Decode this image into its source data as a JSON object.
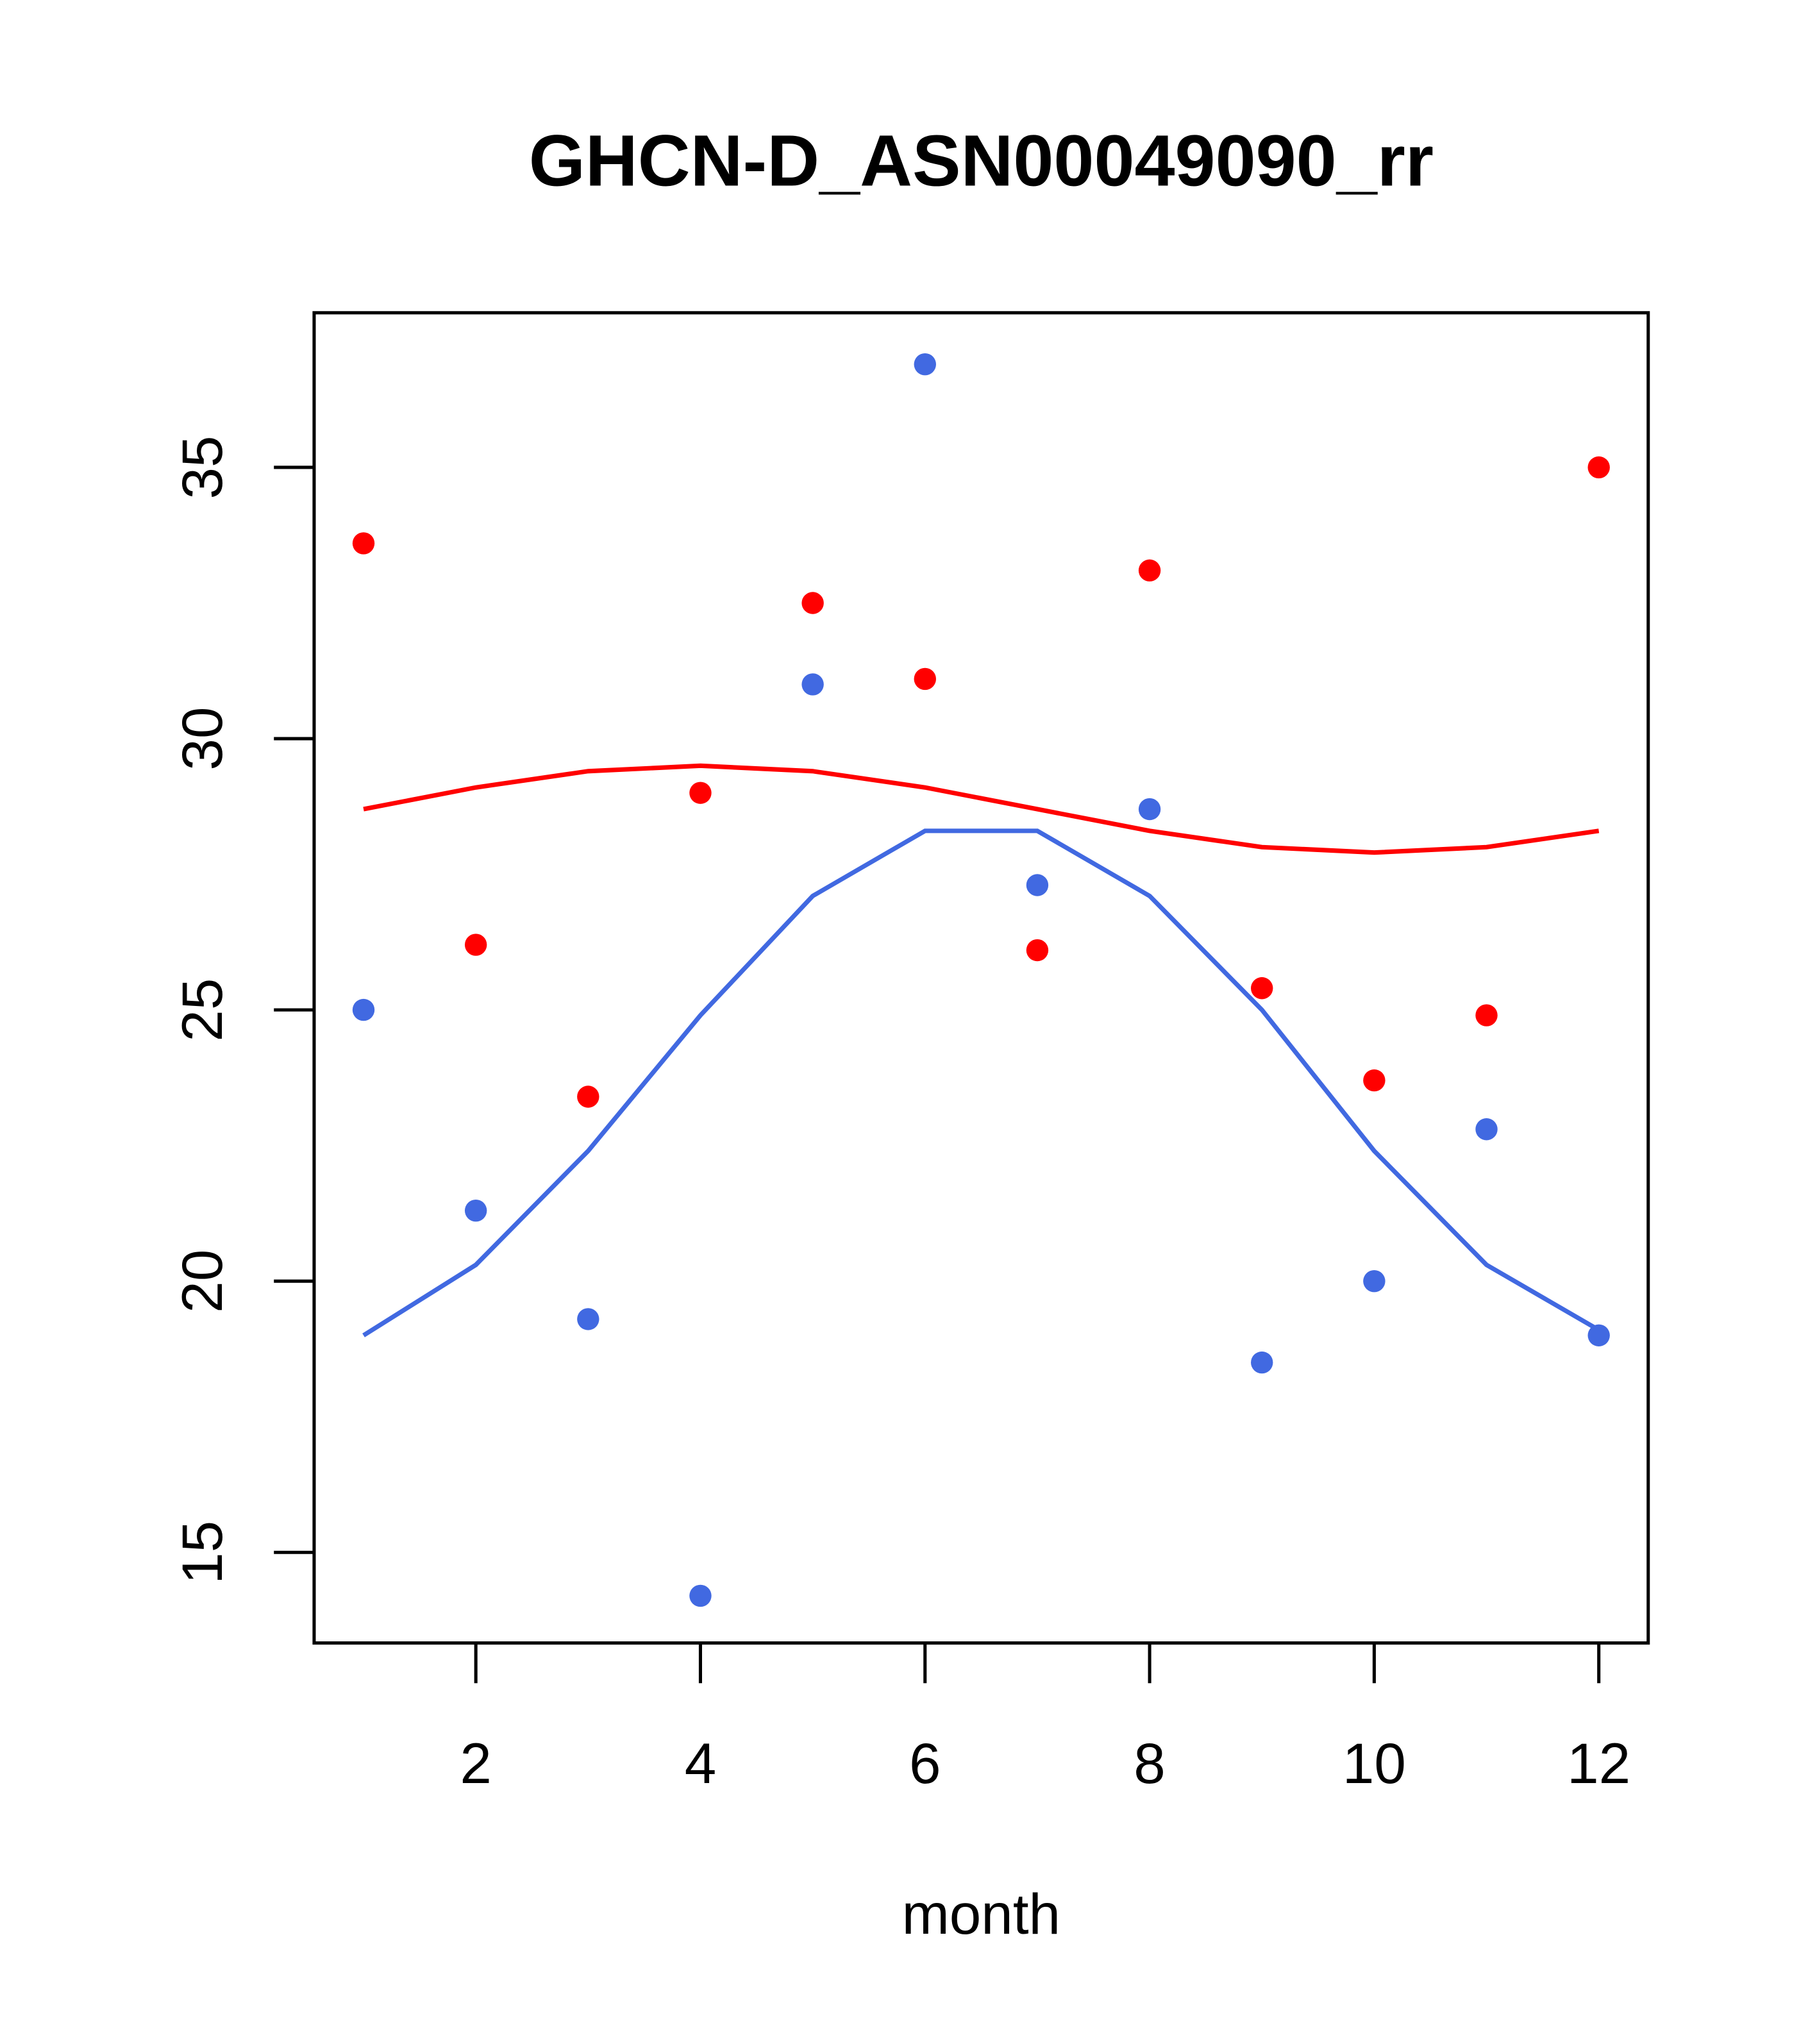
{
  "chart_data": {
    "type": "scatter",
    "title": "GHCN-D_ASN00049090_rr",
    "xlabel": "month",
    "ylabel": "",
    "xlim": [
      0.56,
      12.44
    ],
    "ylim": [
      13.33,
      37.85
    ],
    "xticks": [
      2,
      4,
      6,
      8,
      10,
      12
    ],
    "yticks": [
      15,
      20,
      25,
      30,
      35
    ],
    "grid": false,
    "x": [
      1,
      2,
      3,
      4,
      5,
      6,
      7,
      8,
      9,
      10,
      11,
      12
    ],
    "series": [
      {
        "name": "red points",
        "kind": "points",
        "color": "#ff0000",
        "values": [
          33.6,
          26.2,
          23.4,
          29.0,
          32.5,
          31.1,
          26.1,
          33.1,
          25.4,
          23.7,
          24.9,
          35.0
        ]
      },
      {
        "name": "blue points",
        "kind": "points",
        "color": "#4169e1",
        "values": [
          25.0,
          21.3,
          19.3,
          14.2,
          31.0,
          36.9,
          27.3,
          28.7,
          18.5,
          20.0,
          22.8,
          19.0
        ]
      },
      {
        "name": "red line",
        "kind": "line",
        "color": "#ff0000",
        "values": [
          28.7,
          29.1,
          29.4,
          29.5,
          29.4,
          29.1,
          28.7,
          28.3,
          28.0,
          27.9,
          28.0,
          28.3
        ]
      },
      {
        "name": "blue line",
        "kind": "line",
        "color": "#4169e1",
        "values": [
          19.0,
          20.3,
          22.4,
          24.9,
          27.1,
          28.3,
          28.3,
          27.1,
          25.0,
          22.4,
          20.3,
          19.1
        ]
      }
    ]
  }
}
